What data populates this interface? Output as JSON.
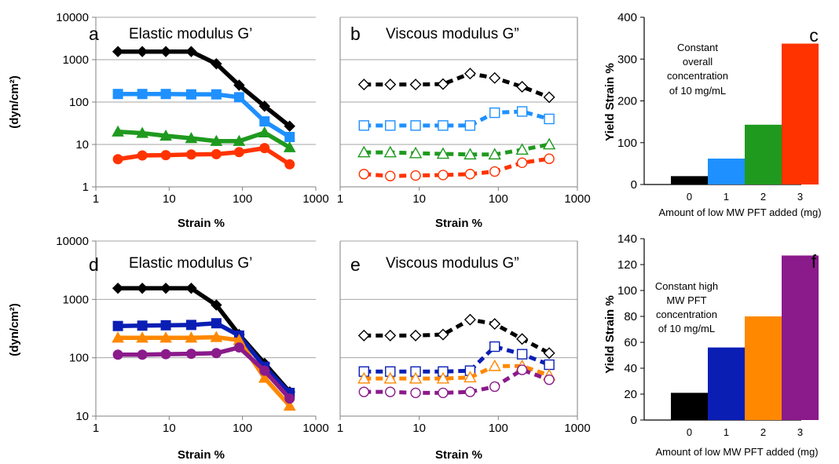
{
  "figure": {
    "panels": {
      "a": {
        "label": "a",
        "title": "Elastic modulus G’",
        "ylabel": "(dyn/cm²)",
        "xlabel": "Strain %"
      },
      "b": {
        "label": "b",
        "title": "Viscous modulus G”",
        "xlabel": "Strain %"
      },
      "c": {
        "label": "c",
        "note": [
          "Constant",
          "overall",
          "concentration",
          "of 10 mg/mL"
        ],
        "ylabel": "Yield Strain %",
        "xlabel": "Amount of low MW PFT added (mg)"
      },
      "d": {
        "label": "d",
        "title": "Elastic modulus G’",
        "ylabel": "(dyn/cm²)",
        "xlabel": "Strain %"
      },
      "e": {
        "label": "e",
        "title": "Viscous modulus G”",
        "xlabel": "Strain %"
      },
      "f": {
        "label": "f",
        "note": [
          "Constant high",
          "MW PFT",
          "concentration",
          "of 10 mg/mL"
        ],
        "ylabel": "Yield Strain %",
        "xlabel": "Amount of low MW PFT added (mg)"
      }
    }
  },
  "colors": {
    "black": "#000000",
    "blue_light": "#1e90ff",
    "green": "#1f9a1f",
    "red": "#ff3300",
    "navy": "#0a1eb4",
    "orange": "#ff8800",
    "purple": "#8b1a8b"
  },
  "chart_data": [
    {
      "type": "line",
      "id": "a",
      "xscale": "log",
      "yscale": "log",
      "xlim": [
        1,
        1000
      ],
      "ylim": [
        1,
        10000
      ],
      "xticks": [
        "1",
        "10",
        "100",
        "1000"
      ],
      "yticks": [
        "1",
        "10",
        "100",
        "1000",
        "10000"
      ],
      "x": [
        2,
        4.3,
        9,
        20,
        44,
        90,
        200,
        440
      ],
      "series": [
        {
          "color": "black",
          "marker": "diamond",
          "filled": true,
          "values": [
            1550,
            1550,
            1550,
            1550,
            800,
            250,
            80,
            27
          ]
        },
        {
          "color": "blue_light",
          "marker": "square",
          "filled": true,
          "values": [
            155,
            155,
            155,
            152,
            152,
            130,
            35,
            15
          ]
        },
        {
          "color": "green",
          "marker": "triangle",
          "filled": true,
          "values": [
            20,
            18.5,
            16,
            14,
            12,
            12,
            19,
            8.5
          ]
        },
        {
          "color": "red",
          "marker": "circle",
          "filled": true,
          "values": [
            4.5,
            5.5,
            5.6,
            5.8,
            5.9,
            6.6,
            8.2,
            3.4
          ]
        }
      ]
    },
    {
      "type": "line",
      "id": "b",
      "xscale": "log",
      "yscale": "log",
      "dashed": true,
      "xlim": [
        1,
        1000
      ],
      "ylim": [
        1,
        10000
      ],
      "xticks": [
        "1",
        "10",
        "100",
        "1000"
      ],
      "x": [
        2,
        4.3,
        9,
        20,
        44,
        90,
        200,
        440
      ],
      "series": [
        {
          "color": "black",
          "marker": "diamond",
          "filled": false,
          "values": [
            260,
            260,
            260,
            265,
            470,
            370,
            230,
            130
          ]
        },
        {
          "color": "blue_light",
          "marker": "square",
          "filled": false,
          "values": [
            28,
            28,
            28,
            28,
            28,
            56,
            60,
            40
          ]
        },
        {
          "color": "green",
          "marker": "triangle",
          "filled": false,
          "values": [
            6.5,
            6.5,
            6.2,
            6,
            5.8,
            5.8,
            7.5,
            10
          ]
        },
        {
          "color": "red",
          "marker": "circle",
          "filled": false,
          "values": [
            2.0,
            1.8,
            1.85,
            1.9,
            2.0,
            2.3,
            3.7,
            4.6
          ]
        }
      ]
    },
    {
      "type": "bar",
      "id": "c",
      "ylim": [
        0,
        400
      ],
      "yticks": [
        "0",
        "100",
        "200",
        "300",
        "400"
      ],
      "categories": [
        "0",
        "1",
        "2",
        "3"
      ],
      "values": [
        20,
        62,
        143,
        337
      ],
      "colors": [
        "black",
        "blue_light",
        "green",
        "red"
      ]
    },
    {
      "type": "line",
      "id": "d",
      "xscale": "log",
      "yscale": "log",
      "xlim": [
        1,
        1000
      ],
      "ylim": [
        10,
        10000
      ],
      "xticks": [
        "1",
        "10",
        "100",
        "1000"
      ],
      "yticks": [
        "10",
        "100",
        "1000",
        "10000"
      ],
      "x": [
        2,
        4.3,
        9,
        20,
        44,
        90,
        200,
        440
      ],
      "series": [
        {
          "color": "black",
          "marker": "diamond",
          "filled": true,
          "values": [
            1550,
            1550,
            1550,
            1550,
            800,
            250,
            80,
            26
          ]
        },
        {
          "color": "navy",
          "marker": "square",
          "filled": true,
          "values": [
            350,
            355,
            360,
            365,
            390,
            240,
            70,
            25
          ]
        },
        {
          "color": "orange",
          "marker": "triangle",
          "filled": true,
          "values": [
            220,
            220,
            220,
            220,
            225,
            200,
            45,
            15
          ]
        },
        {
          "color": "purple",
          "marker": "circle",
          "filled": true,
          "values": [
            113,
            113,
            115,
            117,
            120,
            150,
            60,
            20
          ]
        }
      ]
    },
    {
      "type": "line",
      "id": "e",
      "xscale": "log",
      "yscale": "log",
      "dashed": true,
      "xlim": [
        1,
        1000
      ],
      "ylim": [
        10,
        10000
      ],
      "xticks": [
        "1",
        "10",
        "100",
        "1000"
      ],
      "x": [
        2,
        4.3,
        9,
        20,
        44,
        90,
        200,
        440
      ],
      "series": [
        {
          "color": "black",
          "marker": "diamond",
          "filled": false,
          "values": [
            240,
            240,
            240,
            250,
            450,
            380,
            210,
            120
          ]
        },
        {
          "color": "navy",
          "marker": "square",
          "filled": false,
          "values": [
            58,
            58,
            58,
            58,
            60,
            155,
            115,
            76
          ]
        },
        {
          "color": "orange",
          "marker": "triangle",
          "filled": false,
          "values": [
            44,
            44,
            44,
            44,
            46,
            72,
            72,
            50
          ]
        },
        {
          "color": "purple",
          "marker": "circle",
          "filled": false,
          "values": [
            26,
            26,
            25,
            25,
            26,
            32,
            62,
            42
          ]
        }
      ]
    },
    {
      "type": "bar",
      "id": "f",
      "ylim": [
        0,
        140
      ],
      "yticks": [
        "0",
        "20",
        "40",
        "60",
        "80",
        "100",
        "120",
        "140"
      ],
      "categories": [
        "0",
        "1",
        "2",
        "3"
      ],
      "values": [
        21,
        56,
        80,
        127
      ],
      "colors": [
        "black",
        "navy",
        "orange",
        "purple"
      ]
    }
  ]
}
